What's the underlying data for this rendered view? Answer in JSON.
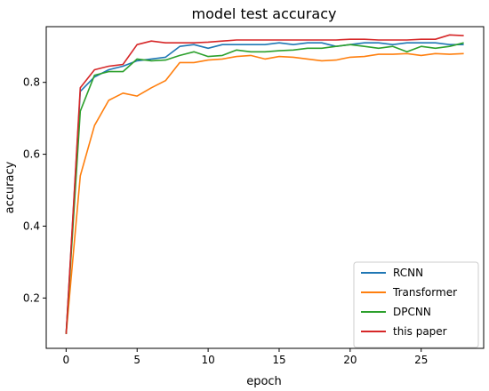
{
  "chart_data": {
    "type": "line",
    "title": "model test accuracy",
    "xlabel": "epoch",
    "ylabel": "accuracy",
    "xlim": [
      -1.4,
      29.4
    ],
    "ylim": [
      0.06,
      0.955
    ],
    "xticks": [
      0,
      5,
      10,
      15,
      20,
      25
    ],
    "yticks": [
      0.2,
      0.4,
      0.6,
      0.8
    ],
    "x": [
      0,
      1,
      2,
      3,
      4,
      5,
      6,
      7,
      8,
      9,
      10,
      11,
      12,
      13,
      14,
      15,
      16,
      17,
      18,
      19,
      20,
      21,
      22,
      23,
      24,
      25,
      26,
      27,
      28
    ],
    "grid": false,
    "legend_position": "lower-right",
    "series": [
      {
        "name": "RCNN",
        "color": "#1f77b4",
        "values": [
          0.1,
          0.775,
          0.815,
          0.835,
          0.845,
          0.86,
          0.865,
          0.87,
          0.9,
          0.905,
          0.895,
          0.905,
          0.905,
          0.905,
          0.905,
          0.91,
          0.905,
          0.91,
          0.91,
          0.9,
          0.905,
          0.91,
          0.91,
          0.905,
          0.91,
          0.91,
          0.91,
          0.905,
          0.905
        ]
      },
      {
        "name": "Transformer",
        "color": "#ff7f0e",
        "values": [
          0.1,
          0.54,
          0.68,
          0.75,
          0.77,
          0.762,
          0.785,
          0.805,
          0.855,
          0.855,
          0.862,
          0.865,
          0.872,
          0.875,
          0.865,
          0.872,
          0.87,
          0.865,
          0.86,
          0.862,
          0.87,
          0.872,
          0.878,
          0.878,
          0.88,
          0.875,
          0.88,
          0.878,
          0.88
        ]
      },
      {
        "name": "DPCNN",
        "color": "#2ca02c",
        "values": [
          0.1,
          0.72,
          0.82,
          0.83,
          0.83,
          0.865,
          0.86,
          0.862,
          0.875,
          0.885,
          0.872,
          0.875,
          0.89,
          0.885,
          0.885,
          0.888,
          0.89,
          0.895,
          0.895,
          0.9,
          0.905,
          0.9,
          0.895,
          0.9,
          0.885,
          0.9,
          0.895,
          0.9,
          0.91
        ]
      },
      {
        "name": "this paper",
        "color": "#d62728",
        "values": [
          0.1,
          0.785,
          0.835,
          0.845,
          0.85,
          0.905,
          0.915,
          0.91,
          0.91,
          0.91,
          0.912,
          0.915,
          0.918,
          0.918,
          0.918,
          0.918,
          0.918,
          0.918,
          0.918,
          0.918,
          0.92,
          0.92,
          0.918,
          0.918,
          0.918,
          0.92,
          0.92,
          0.932,
          0.93
        ]
      }
    ]
  }
}
